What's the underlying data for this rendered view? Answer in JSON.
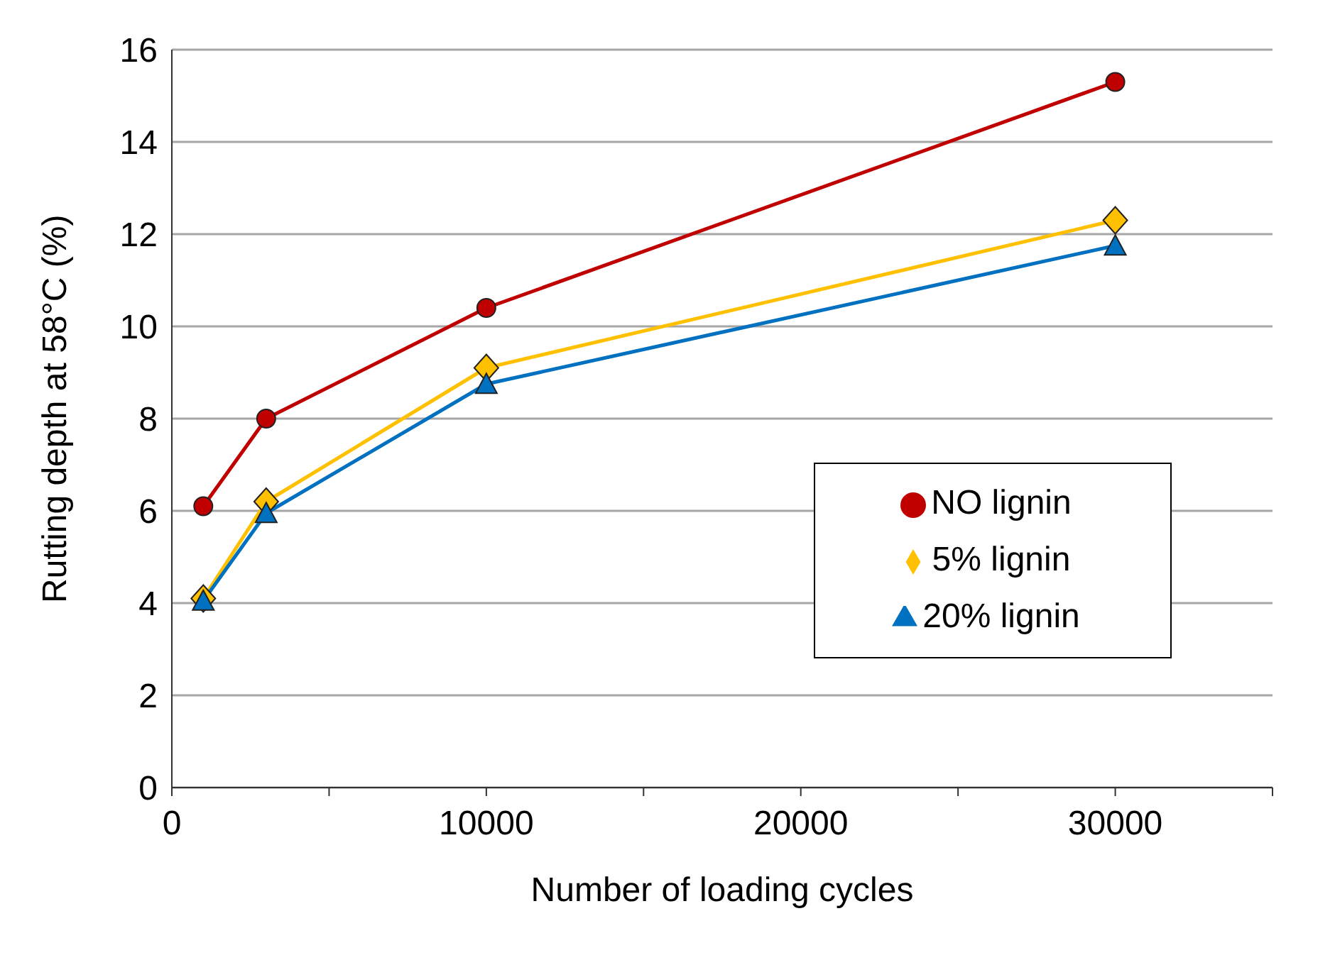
{
  "chart_data": {
    "type": "line",
    "xlabel": "Number of loading cycles",
    "ylabel": "Rutting depth at 58°C (%)",
    "x": [
      1000,
      3000,
      10000,
      30000
    ],
    "series": [
      {
        "name": "NO lignin",
        "color": "#c00000",
        "marker": "circle",
        "values": [
          6.1,
          8.0,
          10.4,
          15.3
        ]
      },
      {
        "name": "5% lignin",
        "color": "#ffc000",
        "marker": "diamond",
        "values": [
          4.1,
          6.2,
          9.1,
          12.3
        ]
      },
      {
        "name": "20% lignin",
        "color": "#0070c0",
        "marker": "triangle",
        "values": [
          4.05,
          5.95,
          8.75,
          11.75
        ]
      }
    ],
    "xlim": [
      0,
      35000
    ],
    "xticks": [
      0,
      {
        "value": 5000,
        "label": null
      },
      10000,
      {
        "value": 15000,
        "label": null
      },
      20000,
      {
        "value": 25000,
        "label": null
      },
      30000,
      {
        "value": 35000,
        "label": null
      }
    ],
    "ylim": [
      0,
      16
    ],
    "yticks": [
      0,
      2,
      4,
      6,
      8,
      10,
      12,
      14,
      16
    ],
    "grid": "y",
    "legend": "right",
    "line_style": "solid"
  }
}
